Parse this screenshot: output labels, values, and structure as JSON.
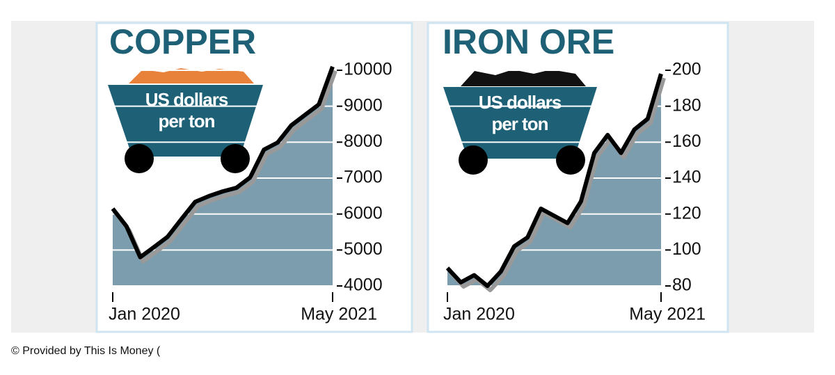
{
  "chart_data": [
    {
      "type": "line",
      "title": "COPPER",
      "subtitle": "US dollars per ton",
      "x": [
        "2020-01",
        "2020-02",
        "2020-03",
        "2020-04",
        "2020-05",
        "2020-06",
        "2020-07",
        "2020-08",
        "2020-09",
        "2020-10",
        "2020-11",
        "2020-12",
        "2021-01",
        "2021-02",
        "2021-03",
        "2021-04",
        "2021-05"
      ],
      "series": [
        {
          "name": "Copper",
          "color": "#000000",
          "values": [
            6150,
            5660,
            4800,
            5080,
            5370,
            5860,
            6340,
            6500,
            6630,
            6730,
            7020,
            7790,
            7990,
            8470,
            8760,
            9050,
            10100
          ]
        }
      ],
      "xlim": [
        "2020-01",
        "2021-05"
      ],
      "xticks": [
        {
          "value": "2020-01",
          "label": "Jan 2020"
        },
        {
          "value": "2021-05",
          "label": "May 2021"
        }
      ],
      "ylim": [
        4000,
        10000
      ],
      "yticks": [
        4000,
        5000,
        6000,
        7000,
        8000,
        9000,
        10000
      ],
      "grid": true,
      "area_color": "#7c9dad"
    },
    {
      "type": "line",
      "title": "IRON ORE",
      "subtitle": "US dollars per ton",
      "x": [
        "2020-01",
        "2020-02",
        "2020-03",
        "2020-04",
        "2020-05",
        "2020-06",
        "2020-07",
        "2020-08",
        "2020-09",
        "2020-10",
        "2020-11",
        "2020-12",
        "2021-01",
        "2021-02",
        "2021-03",
        "2021-04",
        "2021-05"
      ],
      "series": [
        {
          "name": "Iron ore",
          "color": "#000000",
          "values": [
            90,
            82,
            86,
            80,
            88,
            102,
            107,
            123,
            119,
            115,
            127,
            154,
            164,
            154,
            167,
            173,
            198
          ]
        }
      ],
      "xlim": [
        "2020-01",
        "2021-05"
      ],
      "xticks": [
        {
          "value": "2020-01",
          "label": "Jan 2020"
        },
        {
          "value": "2021-05",
          "label": "May 2021"
        }
      ],
      "ylim": [
        80,
        200
      ],
      "yticks": [
        80,
        100,
        120,
        140,
        160,
        180,
        200
      ],
      "grid": true,
      "area_color": "#7c9dad"
    }
  ],
  "caption": "© Provided by This Is Money ("
}
